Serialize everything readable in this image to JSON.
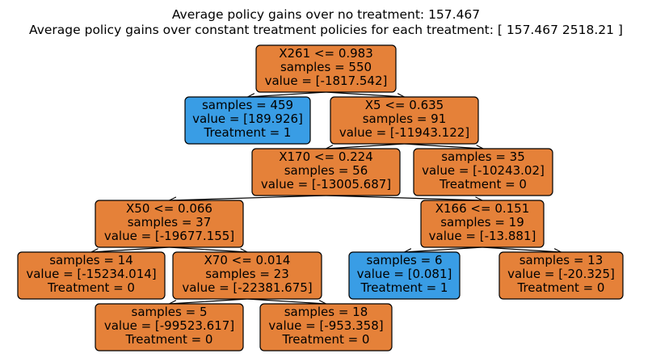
{
  "title": {
    "line1": "Average policy gains over no treatment: 157.467",
    "line2": "Average policy gains over constant treatment policies for each treatment: [ 157.467 2518.21 ]"
  },
  "colors": {
    "no_treatment_fill": "#e58139",
    "treatment_fill": "#399de5",
    "border": "#000000"
  },
  "nodes": [
    {
      "id": "n0",
      "kind": "split",
      "lines": [
        "X261 <= 0.983",
        "samples = 550",
        "value = [-1817.542]"
      ]
    },
    {
      "id": "n1",
      "kind": "leaf-treat",
      "lines": [
        "samples = 459",
        "value = [189.926]",
        "Treatment = 1"
      ]
    },
    {
      "id": "n2",
      "kind": "split",
      "lines": [
        "X5 <= 0.635",
        "samples = 91",
        "value = [-11943.122]"
      ]
    },
    {
      "id": "n3",
      "kind": "split",
      "lines": [
        "X170 <= 0.224",
        "samples = 56",
        "value = [-13005.687]"
      ]
    },
    {
      "id": "n4",
      "kind": "leaf",
      "lines": [
        "samples = 35",
        "value = [-10243.02]",
        "Treatment = 0"
      ]
    },
    {
      "id": "n5",
      "kind": "split",
      "lines": [
        "X50 <= 0.066",
        "samples = 37",
        "value = [-19677.155]"
      ]
    },
    {
      "id": "n6",
      "kind": "split",
      "lines": [
        "X166 <= 0.151",
        "samples = 19",
        "value = [-13.881]"
      ]
    },
    {
      "id": "n7",
      "kind": "leaf",
      "lines": [
        "samples = 14",
        "value = [-15234.014]",
        "Treatment = 0"
      ]
    },
    {
      "id": "n8",
      "kind": "split",
      "lines": [
        "X70 <= 0.014",
        "samples = 23",
        "value = [-22381.675]"
      ]
    },
    {
      "id": "n9",
      "kind": "leaf-treat",
      "lines": [
        "samples = 6",
        "value = [0.081]",
        "Treatment = 1"
      ]
    },
    {
      "id": "n10",
      "kind": "leaf",
      "lines": [
        "samples = 13",
        "value = [-20.325]",
        "Treatment = 0"
      ]
    },
    {
      "id": "n11",
      "kind": "leaf",
      "lines": [
        "samples = 5",
        "value = [-99523.617]",
        "Treatment = 0"
      ]
    },
    {
      "id": "n12",
      "kind": "leaf",
      "lines": [
        "samples = 18",
        "value = [-953.358]",
        "Treatment = 0"
      ]
    }
  ],
  "edges": [
    [
      "n0",
      "n1"
    ],
    [
      "n0",
      "n2"
    ],
    [
      "n2",
      "n3"
    ],
    [
      "n2",
      "n4"
    ],
    [
      "n3",
      "n5"
    ],
    [
      "n3",
      "n6"
    ],
    [
      "n5",
      "n7"
    ],
    [
      "n5",
      "n8"
    ],
    [
      "n6",
      "n9"
    ],
    [
      "n6",
      "n10"
    ],
    [
      "n8",
      "n11"
    ],
    [
      "n8",
      "n12"
    ]
  ]
}
